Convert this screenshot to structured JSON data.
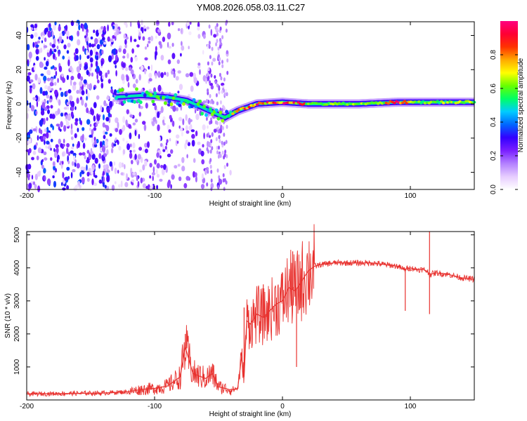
{
  "title": "YM08.2026.058.03.11.C27",
  "chart_data": [
    {
      "type": "heatmap",
      "title": "YM08.2026.058.03.11.C27",
      "xlabel": "Height of straight line (km)",
      "ylabel": "Frequency (Hz)",
      "xlim": [
        -200,
        150
      ],
      "ylim": [
        -50,
        48
      ],
      "x_ticks": [
        -200,
        -100,
        0,
        100
      ],
      "y_ticks": [
        -40,
        -20,
        0,
        20,
        40
      ],
      "x_tick_labels": [
        "-200",
        "-100",
        "0",
        "100"
      ],
      "y_tick_labels": [
        "-40",
        "-20",
        "0",
        "20",
        "40"
      ],
      "colorbar": {
        "label": "Normalized spectral amplitude",
        "range": [
          0.0,
          1.0
        ],
        "ticks": [
          0.0,
          0.2,
          0.4,
          0.6,
          0.8
        ],
        "tick_labels": [
          "0.0",
          "0.2",
          "0.4",
          "0.6",
          "0.8"
        ],
        "colormap": [
          "#ffffff",
          "#e6ccff",
          "#b380ff",
          "#7a1fff",
          "#3300ff",
          "#0066ff",
          "#00ccff",
          "#00ff66",
          "#66ff00",
          "#ffff00",
          "#ffaa00",
          "#ff3300",
          "#ff0033",
          "#ff0080"
        ]
      },
      "ridge_center": [
        {
          "x": -130,
          "y": 4
        },
        {
          "x": -110,
          "y": 5
        },
        {
          "x": -90,
          "y": 4
        },
        {
          "x": -75,
          "y": 2
        },
        {
          "x": -60,
          "y": -3
        },
        {
          "x": -45,
          "y": -8
        },
        {
          "x": -35,
          "y": -4
        },
        {
          "x": -20,
          "y": 0
        },
        {
          "x": 0,
          "y": 1
        },
        {
          "x": 20,
          "y": 0
        },
        {
          "x": 60,
          "y": 0
        },
        {
          "x": 90,
          "y": 1
        },
        {
          "x": 120,
          "y": 1
        },
        {
          "x": 150,
          "y": 1
        }
      ],
      "noise_region": {
        "x_from": -200,
        "x_to": -40,
        "amplitude": 0.25
      }
    },
    {
      "type": "line",
      "xlabel": "Height of straight line (km)",
      "ylabel": "SNR (10 * v/v)",
      "xlim": [
        -200,
        150
      ],
      "ylim": [
        0,
        5100
      ],
      "x_ticks": [
        -200,
        -100,
        0,
        100
      ],
      "y_ticks": [
        1000,
        2000,
        3000,
        4000,
        5000
      ],
      "x_tick_labels": [
        "-200",
        "-100",
        "0",
        "100"
      ],
      "y_tick_labels": [
        "1000",
        "2000",
        "3000",
        "4000",
        "5000"
      ],
      "color": "#e8312e",
      "series": [
        {
          "name": "SNR",
          "x": [
            -200,
            -180,
            -160,
            -140,
            -120,
            -110,
            -100,
            -90,
            -80,
            -76,
            -70,
            -60,
            -55,
            -50,
            -45,
            -40,
            -35,
            -32,
            -30,
            -28,
            -25,
            -20,
            -15,
            -10,
            -5,
            0,
            5,
            10,
            15,
            20,
            25,
            30,
            40,
            50,
            60,
            70,
            80,
            90,
            95,
            100,
            105,
            110,
            113,
            115,
            120,
            130,
            140,
            150
          ],
          "y": [
            180,
            190,
            200,
            210,
            250,
            320,
            350,
            420,
            700,
            1600,
            800,
            650,
            800,
            400,
            350,
            300,
            350,
            1300,
            700,
            2400,
            2300,
            2600,
            2500,
            2700,
            2900,
            3000,
            3400,
            3300,
            3600,
            3900,
            4050,
            4100,
            4150,
            4150,
            4150,
            4150,
            4100,
            4050,
            3950,
            4000,
            3950,
            3950,
            3900,
            3800,
            3850,
            3800,
            3700,
            3650
          ]
        }
      ],
      "spikes": [
        {
          "x": -76,
          "y": 2000
        },
        {
          "x": -30,
          "y": 2800
        },
        {
          "x": -15,
          "y": 3500
        },
        {
          "x": 8,
          "y": 4500
        },
        {
          "x": 11,
          "y": 1000
        },
        {
          "x": 96,
          "y": 2700
        },
        {
          "x": 115,
          "y": 5100
        },
        {
          "x": 115,
          "y": 2600
        }
      ]
    }
  ]
}
